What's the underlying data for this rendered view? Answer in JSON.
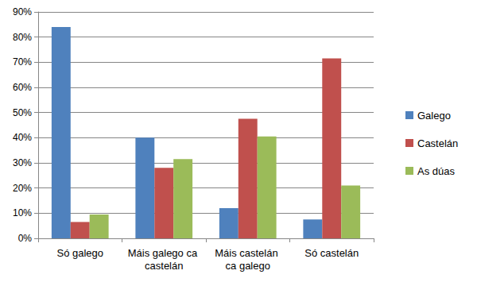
{
  "chart_data": {
    "type": "bar",
    "categories": [
      "Só galego",
      "Máis galego ca castelán",
      "Máis castelán ca galego",
      "Só castelán"
    ],
    "series": [
      {
        "name": "Galego",
        "color": "#4f81bd",
        "values": [
          84,
          40,
          12,
          7.5
        ]
      },
      {
        "name": "Castelán",
        "color": "#c0504d",
        "values": [
          6.5,
          28,
          47.5,
          71.5
        ]
      },
      {
        "name": "As dúas",
        "color": "#9bbb59",
        "values": [
          9.5,
          31.5,
          40.5,
          21
        ]
      }
    ],
    "ylim": [
      0,
      90
    ],
    "yticks": [
      {
        "value": 0,
        "label": "0%"
      },
      {
        "value": 10,
        "label": "10%"
      },
      {
        "value": 20,
        "label": "20%"
      },
      {
        "value": 30,
        "label": "30%"
      },
      {
        "value": 40,
        "label": "40%"
      },
      {
        "value": 50,
        "label": "50%"
      },
      {
        "value": 60,
        "label": "60%"
      },
      {
        "value": 70,
        "label": "70%"
      },
      {
        "value": 80,
        "label": "80%"
      },
      {
        "value": 90,
        "label": "90%"
      }
    ],
    "grid": true,
    "legend": "right"
  }
}
